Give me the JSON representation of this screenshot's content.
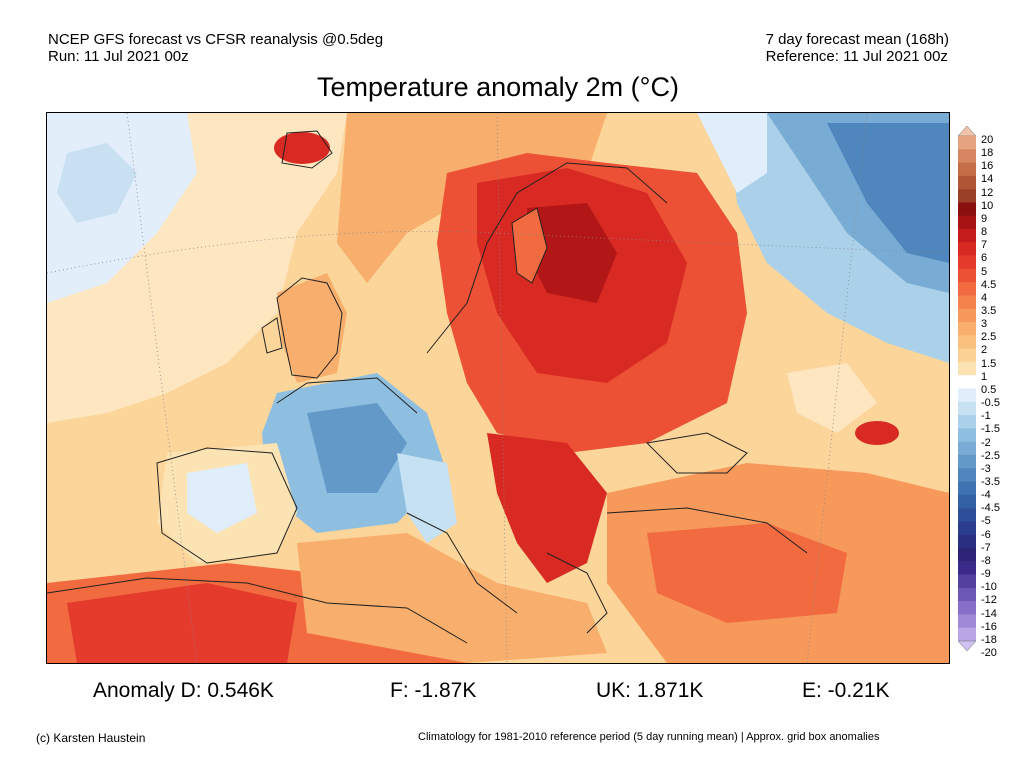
{
  "header": {
    "line1_left": "NCEP GFS forecast vs CFSR reanalysis @0.5deg",
    "line2_left": "Run: 11 Jul 2021 00z",
    "line1_right": "7 day forecast mean (168h)",
    "line2_right": "Reference: 11 Jul 2021 00z"
  },
  "title": "Temperature anomaly 2m (°C)",
  "colorbar": {
    "labels": [
      "20",
      "18",
      "16",
      "14",
      "12",
      "10",
      "9",
      "8",
      "7",
      "6",
      "5",
      "4.5",
      "4",
      "3.5",
      "3",
      "2.5",
      "2",
      "1.5",
      "1",
      "0.5",
      "-0.5",
      "-1",
      "-1.5",
      "-2",
      "-2.5",
      "-3",
      "-3.5",
      "-4",
      "-4.5",
      "-5",
      "-6",
      "-7",
      "-8",
      "-9",
      "-10",
      "-12",
      "-14",
      "-16",
      "-18",
      "-20"
    ],
    "colors": [
      "#f1c3a9",
      "#e6a380",
      "#d68660",
      "#c46d47",
      "#b05535",
      "#9b4028",
      "#8a1010",
      "#a81414",
      "#c41c1c",
      "#d82a22",
      "#e43b2c",
      "#ec5035",
      "#f16a40",
      "#f3824c",
      "#f6995b",
      "#f8ae6c",
      "#fac07e",
      "#fbd294",
      "#fce3b4",
      "#ffffff",
      "#dfeefa",
      "#c6e1f2",
      "#abd0ea",
      "#8fbfe0",
      "#78acd4",
      "#6299c8",
      "#4f86bd",
      "#3e73b1",
      "#3361a6",
      "#2d4f9a",
      "#2b3e8e",
      "#2a2f82",
      "#2d2478",
      "#3b2a8a",
      "#54409e",
      "#6c57b4",
      "#8670c8",
      "#9f8ad8",
      "#b8a6e6",
      "#cfc2f2"
    ]
  },
  "stats": {
    "d": "Anomaly D: 0.546K",
    "f": "F: -1.87K",
    "uk": "UK: 1.871K",
    "e": "E: -0.21K"
  },
  "footer": {
    "left": "(c) Karsten Haustein",
    "right": "Climatology for 1981-2010 reference period (5 day running mean) | Approx. grid box anomalies"
  }
}
